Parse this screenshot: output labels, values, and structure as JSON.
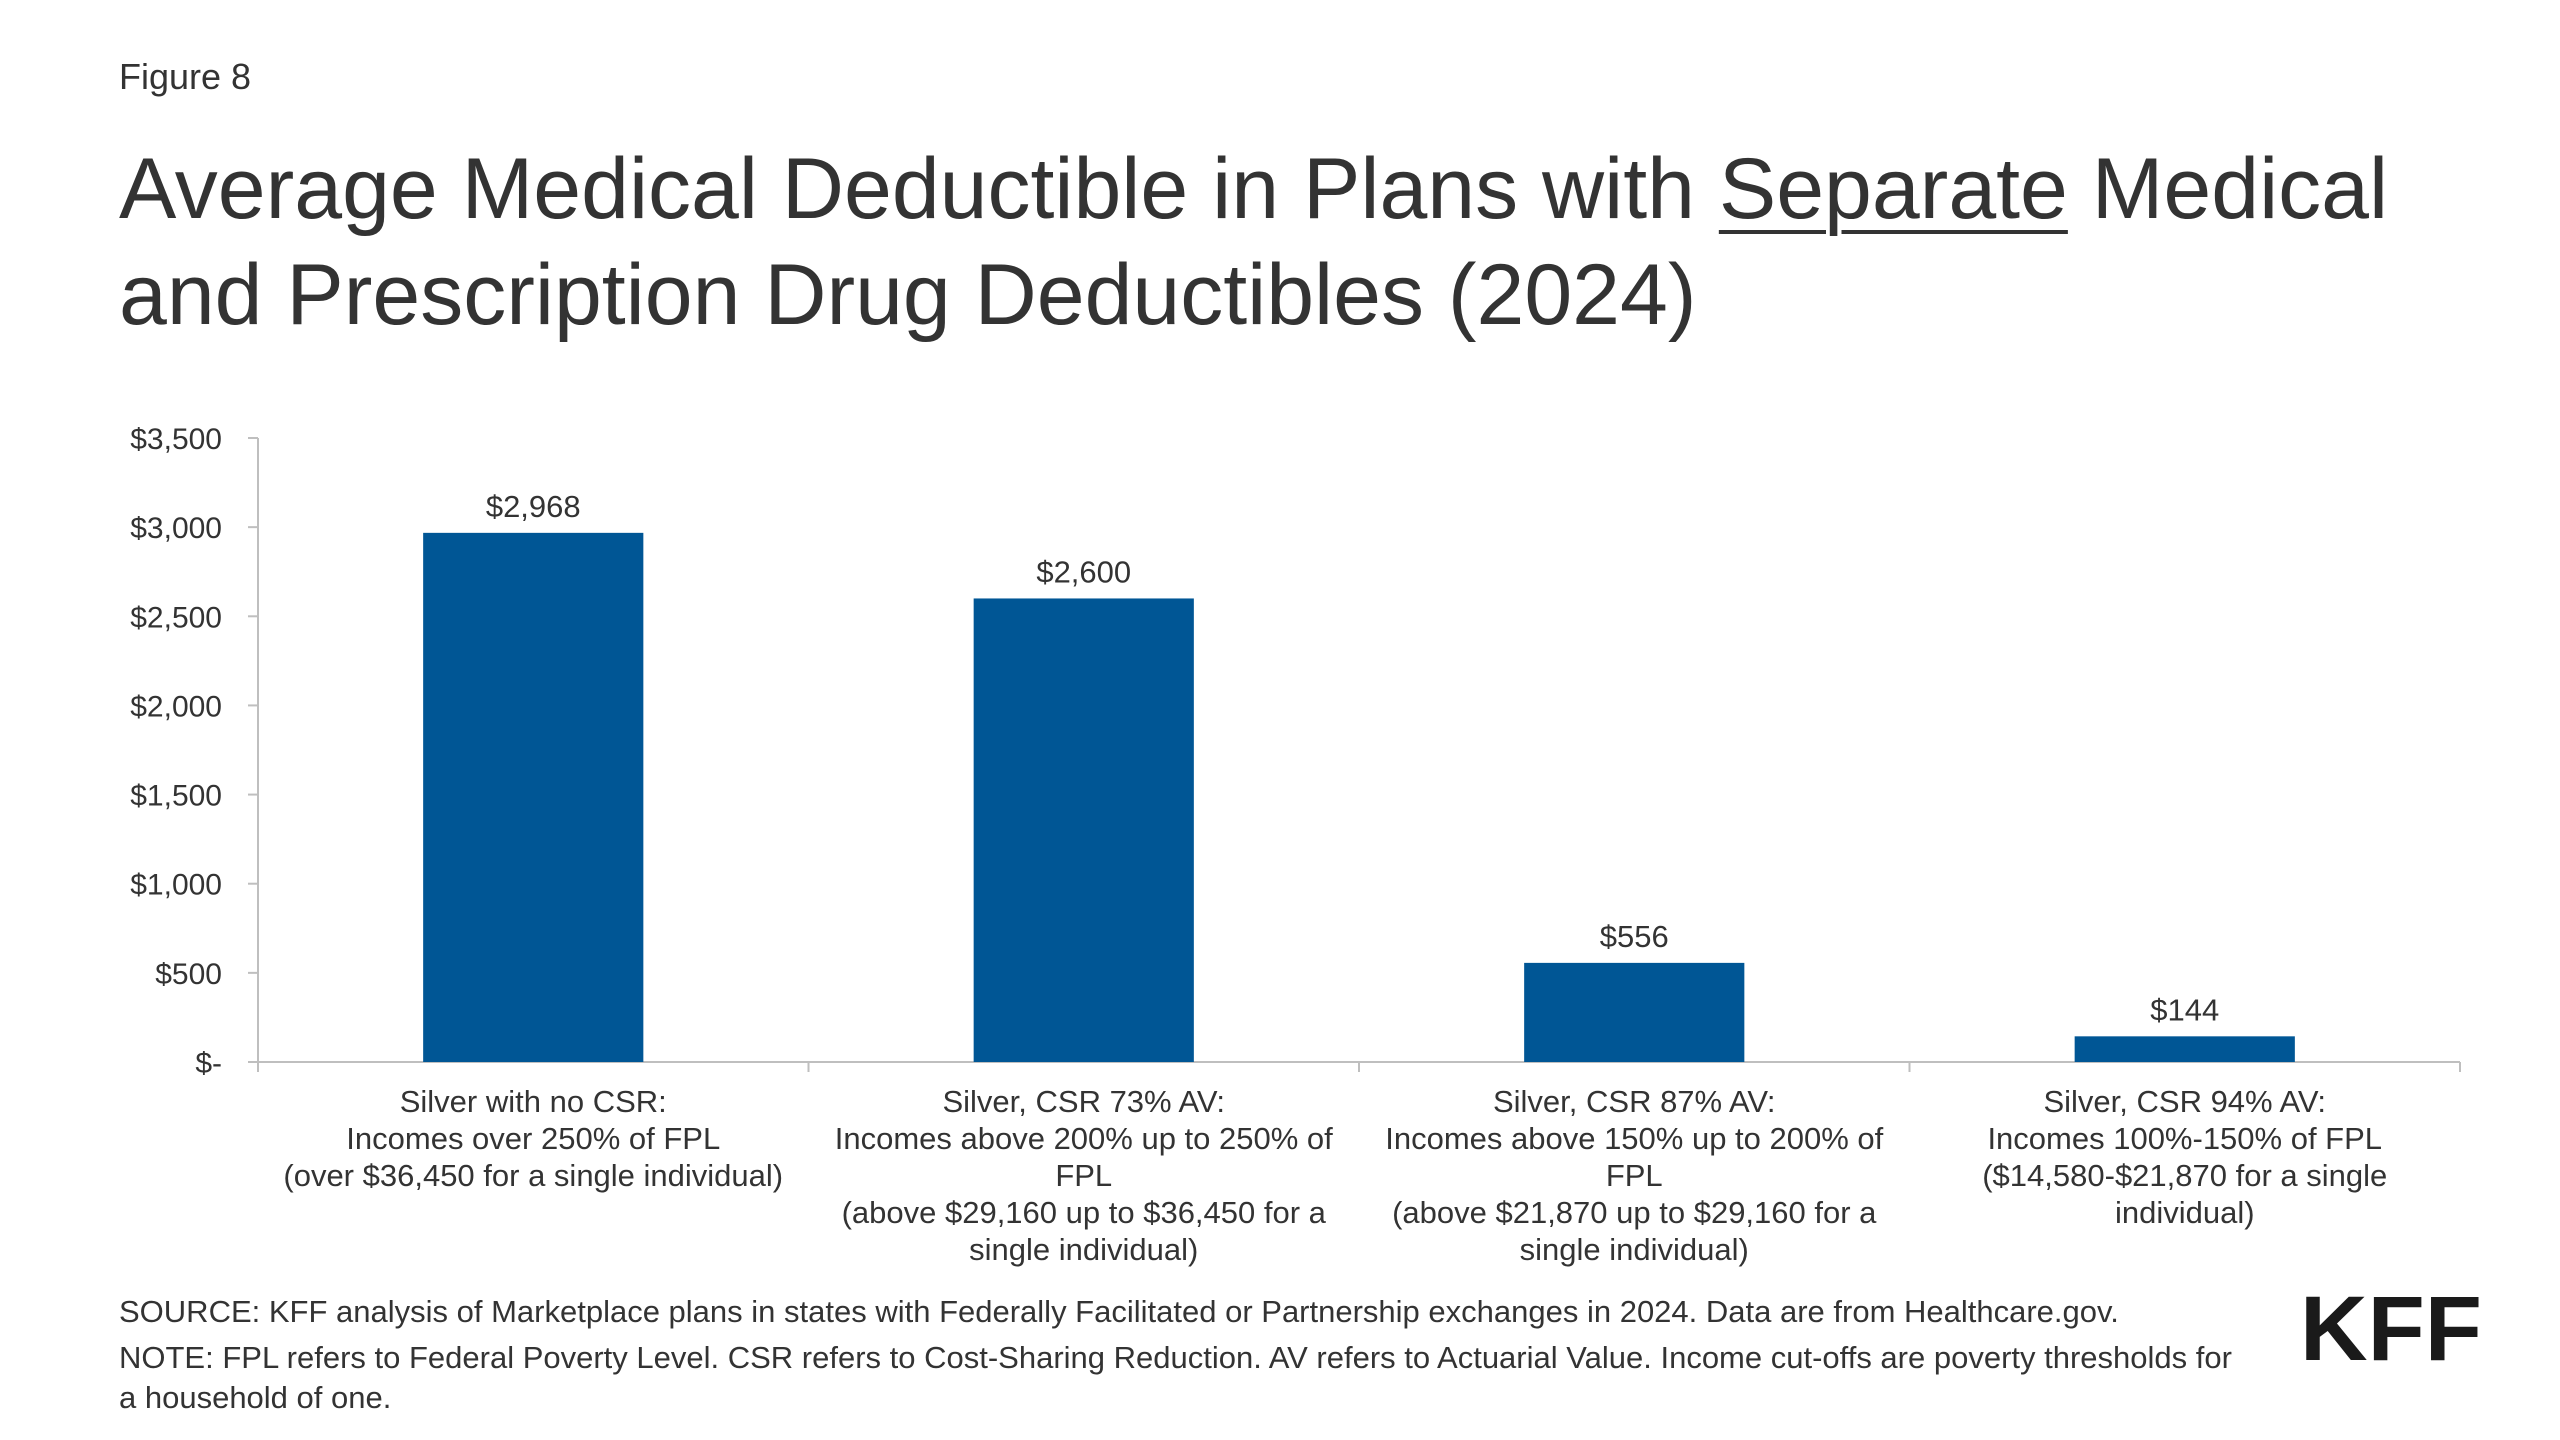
{
  "header": {
    "figure_label": "Figure 8",
    "title_part1": "Average Medical Deductible in Plans with ",
    "title_underlined": "Separate",
    "title_part2": " Medical and Prescription Drug Deductibles (2024)"
  },
  "chart_data": {
    "type": "bar",
    "title": "Average Medical Deductible in Plans with Separate Medical and Prescription Drug Deductibles (2024)",
    "categories": [
      [
        "Silver with no CSR:",
        "Incomes over 250% of FPL",
        "(over $36,450 for a single individual)"
      ],
      [
        "Silver, CSR 73% AV:",
        "Incomes above 200% up to 250% of",
        "FPL",
        "(above $29,160 up to $36,450 for a",
        "single individual)"
      ],
      [
        "Silver, CSR 87% AV:",
        "Incomes above 150% up to 200% of",
        "FPL",
        "(above $21,870 up to $29,160 for a",
        "single individual)"
      ],
      [
        "Silver, CSR 94% AV:",
        "Incomes 100%-150% of FPL",
        "($14,580-$21,870 for a single",
        "individual)"
      ]
    ],
    "values": [
      2968,
      2600,
      556,
      144
    ],
    "data_labels": [
      "$2,968",
      "$2,600",
      "$556",
      "$144"
    ],
    "yticks": [
      0,
      500,
      1000,
      1500,
      2000,
      2500,
      3000,
      3500
    ],
    "ytick_labels": [
      "$-",
      "$500",
      "$1,000",
      "$1,500",
      "$2,000",
      "$2,500",
      "$3,000",
      "$3,500"
    ],
    "ylim": [
      0,
      3500
    ],
    "xlabel": "",
    "ylabel": "",
    "grid": false,
    "legend": "none",
    "bar_color": "#005695",
    "axis_color": "#bfbfbf"
  },
  "footer": {
    "source": "SOURCE: KFF analysis of Marketplace plans in states with Federally Facilitated or Partnership exchanges in 2024. Data are from Healthcare.gov.",
    "note": "NOTE: FPL refers to Federal Poverty Level. CSR refers to Cost-Sharing Reduction. AV refers to Actuarial Value. Income cut-offs are poverty thresholds for a household of one."
  },
  "logo": {
    "text": "KFF"
  }
}
